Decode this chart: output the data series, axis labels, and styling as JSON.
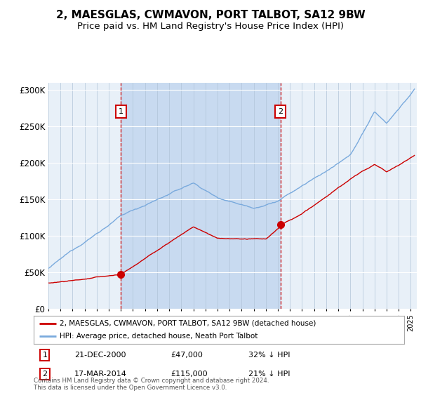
{
  "title": "2, MAESGLAS, CWMAVON, PORT TALBOT, SA12 9BW",
  "subtitle": "Price paid vs. HM Land Registry's House Price Index (HPI)",
  "title_fontsize": 11,
  "subtitle_fontsize": 9.5,
  "background_color": "#ffffff",
  "plot_bg_color": "#e8f0f8",
  "shade_color": "#c8daf0",
  "legend_line1": "2, MAESGLAS, CWMAVON, PORT TALBOT, SA12 9BW (detached house)",
  "legend_line2": "HPI: Average price, detached house, Neath Port Talbot",
  "legend_color1": "#cc0000",
  "legend_color2": "#7aaadd",
  "annotation_color": "#cc0000",
  "footnote": "Contains HM Land Registry data © Crown copyright and database right 2024.\nThis data is licensed under the Open Government Licence v3.0.",
  "marker1_date": "21-DEC-2000",
  "marker1_price": "£47,000",
  "marker1_pct": "32% ↓ HPI",
  "marker1_year": 2001.0,
  "marker1_value": 47000,
  "marker2_date": "17-MAR-2014",
  "marker2_price": "£115,000",
  "marker2_pct": "21% ↓ HPI",
  "marker2_year": 2014.21,
  "marker2_value": 115000,
  "ylim": [
    0,
    310000
  ],
  "yticks": [
    0,
    50000,
    100000,
    150000,
    200000,
    250000,
    300000
  ],
  "ytick_labels": [
    "£0",
    "£50K",
    "£100K",
    "£150K",
    "£200K",
    "£250K",
    "£300K"
  ],
  "xstart": 1995.0,
  "xend": 2025.5
}
